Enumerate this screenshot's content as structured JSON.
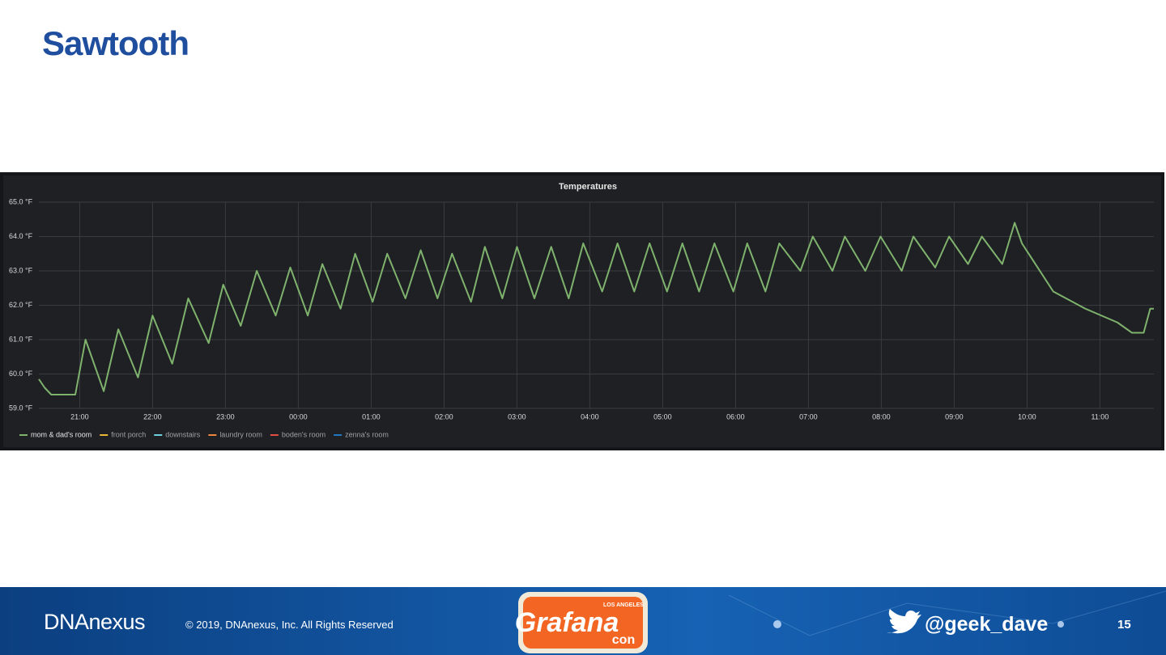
{
  "slide": {
    "title": "Sawtooth",
    "footer": {
      "logo": "DNAnexus",
      "copyright": "© 2019, DNAnexus, Inc. All Rights Reserved",
      "event_logo": {
        "name": "Grafana",
        "place": "LOS ANGELES",
        "suffix": "con"
      },
      "handle": "@geek_dave",
      "page": "15"
    }
  },
  "chart_data": {
    "type": "line",
    "title": "Temperatures",
    "x": [
      20.44,
      20.52,
      20.61,
      20.94,
      21.08,
      21.33,
      21.53,
      21.8,
      22.0,
      22.27,
      22.49,
      22.77,
      22.97,
      23.21,
      23.43,
      23.69,
      23.89,
      24.13,
      24.33,
      24.58,
      24.78,
      25.02,
      25.22,
      25.47,
      25.68,
      25.91,
      26.11,
      26.37,
      26.56,
      26.8,
      27.0,
      27.24,
      27.47,
      27.71,
      27.91,
      28.17,
      28.38,
      28.61,
      28.82,
      29.06,
      29.27,
      29.5,
      29.71,
      29.97,
      30.16,
      30.41,
      30.6,
      30.89,
      31.06,
      31.33,
      31.5,
      31.78,
      31.99,
      32.28,
      32.44,
      32.74,
      32.93,
      33.19,
      33.38,
      33.66,
      33.83,
      33.93,
      34.36,
      34.8,
      35.24,
      35.44,
      35.6,
      35.69,
      35.74
    ],
    "series": [
      {
        "name": "mom & dad's room",
        "color": "#7eb26d",
        "values": [
          59.85,
          59.6,
          59.4,
          59.4,
          61.0,
          59.5,
          61.3,
          59.9,
          61.7,
          60.3,
          62.2,
          60.9,
          62.6,
          61.4,
          63.0,
          61.7,
          63.1,
          61.7,
          63.2,
          61.9,
          63.5,
          62.1,
          63.5,
          62.2,
          63.6,
          62.2,
          63.5,
          62.1,
          63.7,
          62.2,
          63.7,
          62.2,
          63.7,
          62.2,
          63.8,
          62.4,
          63.8,
          62.4,
          63.8,
          62.4,
          63.8,
          62.4,
          63.8,
          62.4,
          63.8,
          62.4,
          63.8,
          63.0,
          64.0,
          63.0,
          64.0,
          63.0,
          64.0,
          63.0,
          64.0,
          63.1,
          64.0,
          63.2,
          64.0,
          63.2,
          64.4,
          63.8,
          62.4,
          61.9,
          61.5,
          61.2,
          61.2,
          61.9,
          61.9
        ]
      },
      {
        "name": "front porch",
        "color": "#eab839"
      },
      {
        "name": "downstairs",
        "color": "#6ed0e0"
      },
      {
        "name": "laundry room",
        "color": "#ef843c"
      },
      {
        "name": "boden's room",
        "color": "#e24d42"
      },
      {
        "name": "zenna's room",
        "color": "#1f78c1"
      }
    ],
    "xlim": [
      20.44,
      35.74
    ],
    "xticks": [
      {
        "value": 21,
        "label": "21:00"
      },
      {
        "value": 22,
        "label": "22:00"
      },
      {
        "value": 23,
        "label": "23:00"
      },
      {
        "value": 24,
        "label": "00:00"
      },
      {
        "value": 25,
        "label": "01:00"
      },
      {
        "value": 26,
        "label": "02:00"
      },
      {
        "value": 27,
        "label": "03:00"
      },
      {
        "value": 28,
        "label": "04:00"
      },
      {
        "value": 29,
        "label": "05:00"
      },
      {
        "value": 30,
        "label": "06:00"
      },
      {
        "value": 31,
        "label": "07:00"
      },
      {
        "value": 32,
        "label": "08:00"
      },
      {
        "value": 33,
        "label": "09:00"
      },
      {
        "value": 34,
        "label": "10:00"
      },
      {
        "value": 35,
        "label": "11:00"
      }
    ],
    "ylim": [
      59,
      65
    ],
    "yticks": [
      {
        "value": 59,
        "label": "59.0 °F"
      },
      {
        "value": 60,
        "label": "60.0 °F"
      },
      {
        "value": 61,
        "label": "61.0 °F"
      },
      {
        "value": 62,
        "label": "62.0 °F"
      },
      {
        "value": 63,
        "label": "63.0 °F"
      },
      {
        "value": 64,
        "label": "64.0 °F"
      },
      {
        "value": 65,
        "label": "65.0 °F"
      }
    ],
    "grid": true
  }
}
